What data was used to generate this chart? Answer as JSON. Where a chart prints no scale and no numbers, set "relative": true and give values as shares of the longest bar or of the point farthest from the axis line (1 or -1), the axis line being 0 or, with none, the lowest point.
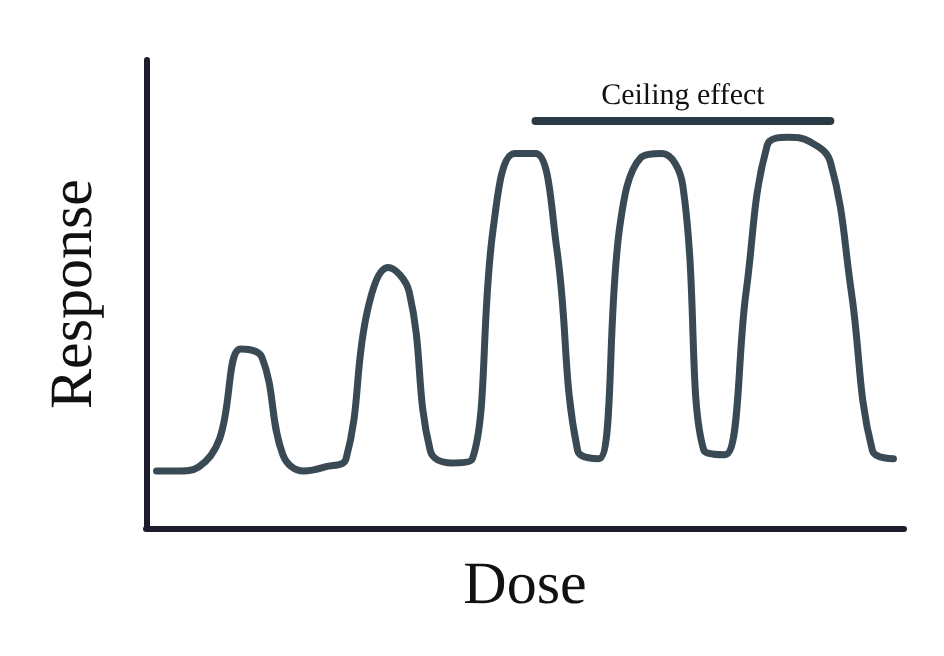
{
  "chart_data": {
    "type": "line",
    "xlabel": "Dose",
    "ylabel": "Response",
    "relative": true,
    "grid": false,
    "legend": false,
    "marker": "none",
    "categories": [
      null,
      null,
      null,
      null,
      null,
      null,
      null,
      null,
      null,
      null,
      null,
      null,
      null,
      null,
      null,
      null,
      null,
      null,
      null,
      null,
      null,
      null,
      null,
      null,
      null,
      null,
      null,
      null,
      null,
      null,
      null,
      null,
      null,
      null,
      null,
      null
    ],
    "series": [
      {
        "color": "#3a4a55",
        "values": [
          0.14,
          0.14,
          0.15,
          0.22,
          0.44,
          0.42,
          0.18,
          0.14,
          0.15,
          0.17,
          0.53,
          0.64,
          0.58,
          0.19,
          0.16,
          0.17,
          0.74,
          0.92,
          0.92,
          0.69,
          0.19,
          0.17,
          0.74,
          0.91,
          0.92,
          0.84,
          0.19,
          0.18,
          0.58,
          0.94,
          0.96,
          0.95,
          0.9,
          0.58,
          0.19,
          0.17
        ]
      },
      {
        "name": "Ceiling effect",
        "color": "#2b3a44",
        "values": [
          null,
          null,
          null,
          null,
          null,
          null,
          null,
          null,
          null,
          null,
          null,
          null,
          null,
          null,
          null,
          null,
          null,
          null,
          1,
          null,
          null,
          null,
          null,
          null,
          null,
          1,
          null,
          null,
          null,
          null,
          null,
          null,
          1,
          null,
          null,
          null
        ]
      }
    ]
  }
}
